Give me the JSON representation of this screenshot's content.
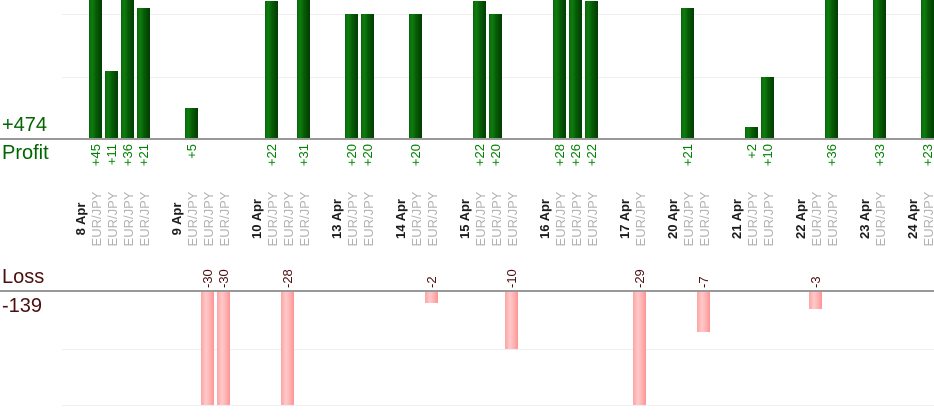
{
  "chart_data": {
    "type": "bar",
    "instrument": "EUR/JPY",
    "profit": {
      "label": "Profit",
      "total_label": "+474",
      "total": 474
    },
    "loss": {
      "label": "Loss",
      "total_label": "-139",
      "total": -139
    },
    "axes": {
      "profit_axis": {
        "baseline": 0,
        "visible_max": 22,
        "gridline_step": 10,
        "bars_clipped_above": 22
      },
      "loss_axis": {
        "baseline": 0,
        "visible_min": -20,
        "gridline_step": 10,
        "bars_clipped_below": -20
      },
      "grid": "horizontal-only",
      "x_label_rotation": -90
    },
    "groups": [
      {
        "date": "8 Apr",
        "trades": [
          {
            "symbol": "EUR/JPY",
            "value": 45,
            "label": "+45"
          },
          {
            "symbol": "EUR/JPY",
            "value": 11,
            "label": "+11"
          },
          {
            "symbol": "EUR/JPY",
            "value": 36,
            "label": "+36"
          },
          {
            "symbol": "EUR/JPY",
            "value": 21,
            "label": "+21"
          }
        ]
      },
      {
        "date": "9 Apr",
        "trades": [
          {
            "symbol": "EUR/JPY",
            "value": 5,
            "label": "+5"
          },
          {
            "symbol": "EUR/JPY",
            "value": -30,
            "label": "-30"
          },
          {
            "symbol": "EUR/JPY",
            "value": -30,
            "label": "-30"
          }
        ]
      },
      {
        "date": "10 Apr",
        "trades": [
          {
            "symbol": "EUR/JPY",
            "value": 22,
            "label": "+22"
          },
          {
            "symbol": "EUR/JPY",
            "value": -28,
            "label": "-28"
          },
          {
            "symbol": "EUR/JPY",
            "value": 31,
            "label": "+31"
          }
        ]
      },
      {
        "date": "13 Apr",
        "trades": [
          {
            "symbol": "EUR/JPY",
            "value": 20,
            "label": "+20"
          },
          {
            "symbol": "EUR/JPY",
            "value": 20,
            "label": "+20"
          }
        ]
      },
      {
        "date": "14 Apr",
        "trades": [
          {
            "symbol": "EUR/JPY",
            "value": 20,
            "label": "+20"
          },
          {
            "symbol": "EUR/JPY",
            "value": -2,
            "label": "-2"
          }
        ]
      },
      {
        "date": "15 Apr",
        "trades": [
          {
            "symbol": "EUR/JPY",
            "value": 22,
            "label": "+22"
          },
          {
            "symbol": "EUR/JPY",
            "value": 20,
            "label": "+20"
          },
          {
            "symbol": "EUR/JPY",
            "value": -10,
            "label": "-10"
          }
        ]
      },
      {
        "date": "16 Apr",
        "trades": [
          {
            "symbol": "EUR/JPY",
            "value": 28,
            "label": "+28"
          },
          {
            "symbol": "EUR/JPY",
            "value": 26,
            "label": "+26"
          },
          {
            "symbol": "EUR/JPY",
            "value": 22,
            "label": "+22"
          }
        ]
      },
      {
        "date": "17 Apr",
        "trades": [
          {
            "symbol": "EUR/JPY",
            "value": -29,
            "label": "-29"
          }
        ]
      },
      {
        "date": "20 Apr",
        "trades": [
          {
            "symbol": "EUR/JPY",
            "value": 21,
            "label": "+21"
          },
          {
            "symbol": "EUR/JPY",
            "value": -7,
            "label": "-7"
          }
        ]
      },
      {
        "date": "21 Apr",
        "trades": [
          {
            "symbol": "EUR/JPY",
            "value": 2,
            "label": "+2"
          },
          {
            "symbol": "EUR/JPY",
            "value": 10,
            "label": "+10"
          }
        ]
      },
      {
        "date": "22 Apr",
        "trades": [
          {
            "symbol": "EUR/JPY",
            "value": -3,
            "label": "-3"
          },
          {
            "symbol": "EUR/JPY",
            "value": 36,
            "label": "+36"
          }
        ]
      },
      {
        "date": "23 Apr",
        "trades": [
          {
            "symbol": "EUR/JPY",
            "value": 33,
            "label": "+33"
          }
        ]
      },
      {
        "date": "24 Apr",
        "trades": [
          {
            "symbol": "EUR/JPY",
            "value": 23,
            "label": "+23"
          }
        ]
      }
    ],
    "colors": {
      "profit_bar": "#0e7c0e",
      "loss_bar": "#ffb3b3",
      "profit_text": "#006600",
      "profit_value_text": "#008000",
      "loss_text": "#4b0e0e",
      "date_text": "#1c1c1c",
      "symbol_text": "#b2b2b2",
      "axis_line": "#999999",
      "gridline": "#efefef"
    }
  }
}
